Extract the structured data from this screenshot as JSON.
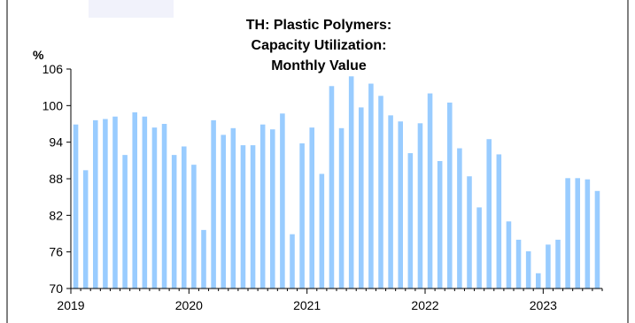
{
  "chart_data": {
    "type": "bar",
    "title": "TH: Plastic Polymers: Capacity Utilization: Monthly Value",
    "title_lines": [
      "TH: Plastic Polymers:",
      "Capacity Utilization:",
      "Monthly Value"
    ],
    "ylabel": "%",
    "xlabel": "",
    "ylim": [
      70,
      106
    ],
    "yticks": [
      70,
      76,
      82,
      88,
      94,
      100,
      106
    ],
    "x_tick_labels": [
      "2019",
      "2020",
      "2021",
      "2022",
      "2023"
    ],
    "grid": false,
    "bar_color": "#99ccff",
    "categories": [
      "2019-01",
      "2019-02",
      "2019-03",
      "2019-04",
      "2019-05",
      "2019-06",
      "2019-07",
      "2019-08",
      "2019-09",
      "2019-10",
      "2019-11",
      "2019-12",
      "2020-01",
      "2020-02",
      "2020-03",
      "2020-04",
      "2020-05",
      "2020-06",
      "2020-07",
      "2020-08",
      "2020-09",
      "2020-10",
      "2020-11",
      "2020-12",
      "2021-01",
      "2021-02",
      "2021-03",
      "2021-04",
      "2021-05",
      "2021-06",
      "2021-07",
      "2021-08",
      "2021-09",
      "2021-10",
      "2021-11",
      "2021-12",
      "2022-01",
      "2022-02",
      "2022-03",
      "2022-04",
      "2022-05",
      "2022-06",
      "2022-07",
      "2022-08",
      "2022-09",
      "2022-10",
      "2022-11",
      "2022-12",
      "2023-01",
      "2023-02",
      "2023-03",
      "2023-04",
      "2023-05",
      "2023-06"
    ],
    "values": [
      96.9,
      89.4,
      97.6,
      97.8,
      98.2,
      91.9,
      98.9,
      98.2,
      96.4,
      97.0,
      91.9,
      93.3,
      90.3,
      79.6,
      97.6,
      95.2,
      96.3,
      93.5,
      93.5,
      96.9,
      96.1,
      98.7,
      78.9,
      93.8,
      96.4,
      88.8,
      103.2,
      96.3,
      104.8,
      99.7,
      103.6,
      101.6,
      98.4,
      97.4,
      92.2,
      97.1,
      102.0,
      90.9,
      100.5,
      93.0,
      88.4,
      83.3,
      94.5,
      92.0,
      81.0,
      78.0,
      76.1,
      72.5,
      77.2,
      78.0,
      88.1,
      88.1,
      87.9,
      86.0
    ]
  }
}
